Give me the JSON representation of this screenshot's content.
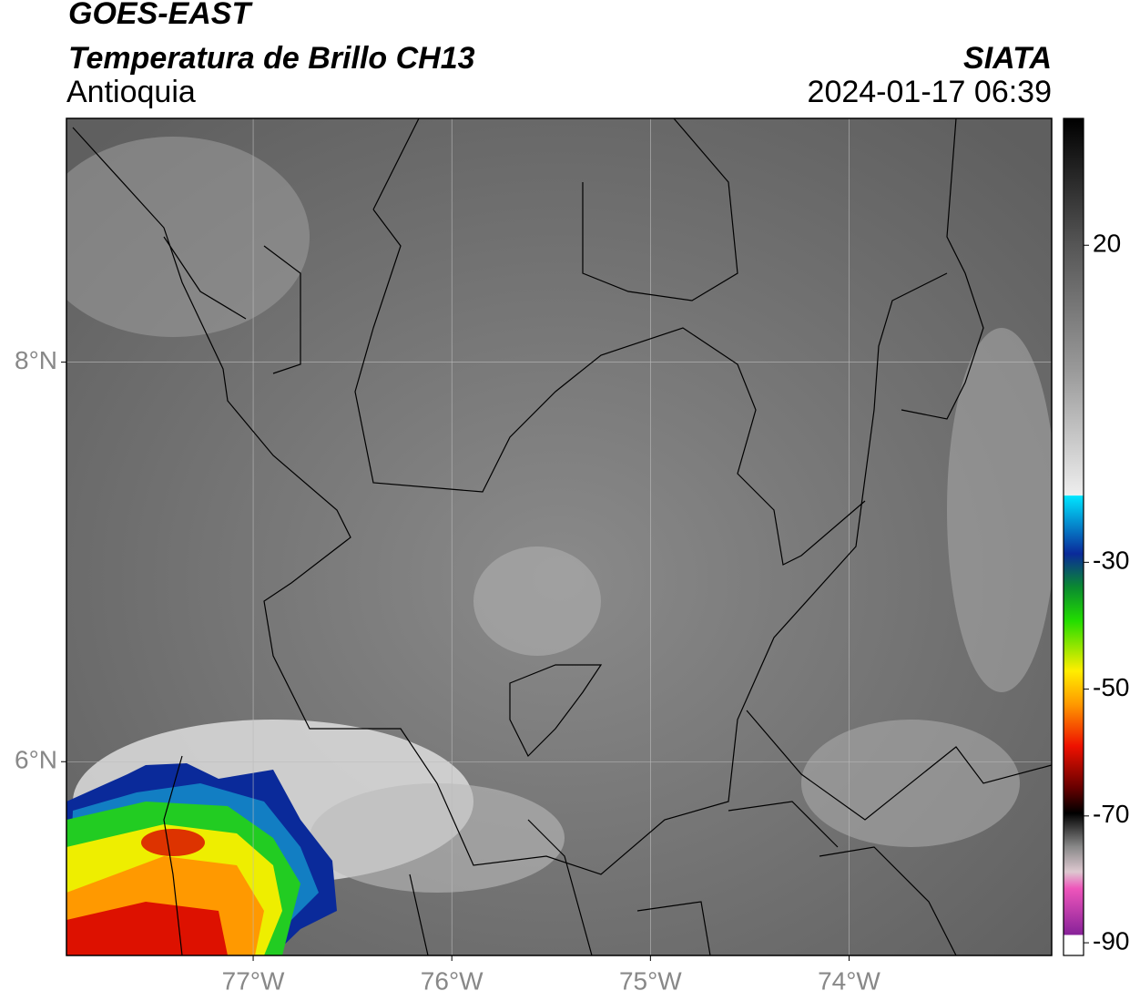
{
  "header": {
    "satellite": "GOES-EAST",
    "product": "Temperatura de Brillo CH13",
    "region": "Antioquia",
    "source": "SIATA",
    "datetime": "2024-01-17 06:39"
  },
  "map": {
    "xlim": [
      -77.94,
      -72.98
    ],
    "ylim": [
      5.03,
      9.22
    ],
    "xticks": [
      {
        "value": -77,
        "label": "77°W"
      },
      {
        "value": -76,
        "label": "76°W"
      },
      {
        "value": -75,
        "label": "75°W"
      },
      {
        "value": -74,
        "label": "74°W"
      }
    ],
    "yticks": [
      {
        "value": 8,
        "label": "8°N"
      },
      {
        "value": 6,
        "label": "6°N"
      }
    ]
  },
  "colorbar": {
    "lim": [
      -92,
      40
    ],
    "ticks": [
      20,
      -30,
      -50,
      -70,
      -90
    ]
  }
}
